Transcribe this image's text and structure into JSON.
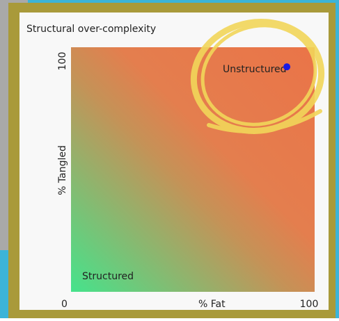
{
  "chart_data": {
    "type": "scatter",
    "title": "Structural over-complexity",
    "x_label": "% Fat",
    "y_label": "% Tangled",
    "x": [
      88.6
    ],
    "values": [
      92
    ],
    "color": "#1a1ae6",
    "xlim": [
      0,
      100
    ],
    "ylim": [
      0,
      100
    ],
    "xticks": [
      0,
      100
    ],
    "yticks": [
      100
    ],
    "annotations": [
      "Unstructured",
      "Structured"
    ]
  }
}
